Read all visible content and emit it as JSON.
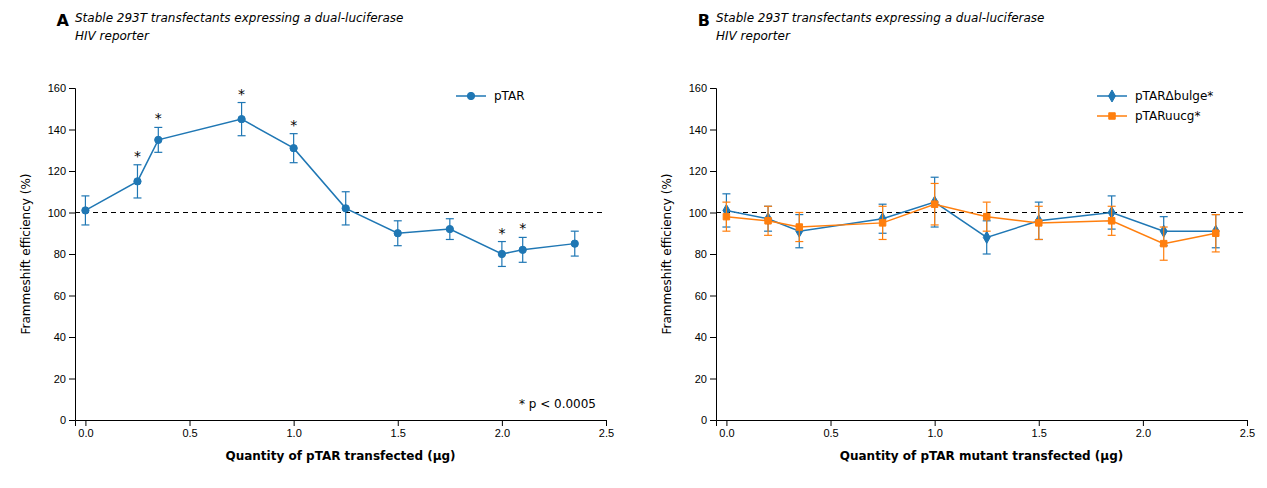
{
  "chart_data": [
    {
      "type": "line",
      "panel": "A",
      "title": "Stable 293T transfectants expressing a dual-luciferase",
      "subtitle": "HIV reporter",
      "xlabel": "Quantity of pTAR transfected (µg)",
      "ylabel": "Frammeshift efficiency (%)",
      "x": [
        0,
        0.25,
        0.35,
        0.75,
        1.0,
        1.25,
        1.5,
        1.75,
        2.0,
        2.1,
        2.35
      ],
      "series": [
        {
          "name": "pTAR",
          "values": [
            101,
            115,
            135,
            145,
            131,
            102,
            90,
            92,
            80,
            82,
            85
          ],
          "yerr": [
            7,
            8,
            6,
            8,
            7,
            8,
            6,
            5,
            6,
            6,
            6
          ],
          "point_labels": [
            null,
            "*",
            "*",
            "*",
            "*",
            null,
            null,
            null,
            "*",
            "*",
            null
          ],
          "marker": "circle",
          "line_style": "solid"
        }
      ],
      "reference_line": 100,
      "annotation": "* p < 0.0005",
      "xlim": [
        -0.05,
        2.5
      ],
      "xticks": [
        {
          "value": 0,
          "label": "0.0"
        },
        0.5,
        {
          "value": 1,
          "label": "1.0"
        },
        1.5,
        {
          "value": 2,
          "label": "2.0"
        },
        2.5
      ],
      "ylim": [
        0,
        160
      ],
      "yticks": [
        0,
        20,
        40,
        60,
        80,
        100,
        120,
        140,
        160
      ],
      "legend": "upper right",
      "grid": false
    },
    {
      "type": "line",
      "panel": "B",
      "title": "Stable 293T transfectants expressing a dual-luciferase",
      "subtitle": "HIV reporter",
      "xlabel": "Quantity of pTAR mutant transfected (µg)",
      "ylabel": "Frammeshift efficiency (%)",
      "x": [
        0,
        0.2,
        0.35,
        0.75,
        1.0,
        1.25,
        1.5,
        1.85,
        2.1,
        2.35
      ],
      "series": [
        {
          "name": "pTARΔbulge*",
          "values": [
            101,
            97,
            91,
            97,
            105,
            88,
            96,
            100,
            91,
            91
          ],
          "yerr": [
            8,
            6,
            8,
            7,
            12,
            8,
            9,
            8,
            7,
            8
          ],
          "marker": "diamond",
          "line_style": "solid"
        },
        {
          "name": "pTARuucg*",
          "values": [
            98,
            96,
            93,
            95,
            104,
            98,
            95,
            96,
            85,
            90
          ],
          "yerr": [
            7,
            7,
            7,
            8,
            10,
            7,
            8,
            7,
            8,
            9
          ],
          "marker": "square",
          "line_style": "solid"
        }
      ],
      "reference_line": 100,
      "xlim": [
        -0.05,
        2.5
      ],
      "xticks": [
        {
          "value": 0,
          "label": "0.0"
        },
        0.5,
        {
          "value": 1,
          "label": "1.0"
        },
        1.5,
        {
          "value": 2,
          "label": "2.0"
        },
        2.5
      ],
      "ylim": [
        0,
        160
      ],
      "yticks": [
        0,
        20,
        40,
        60,
        80,
        100,
        120,
        140,
        160
      ],
      "legend": "upper right",
      "grid": false
    }
  ]
}
